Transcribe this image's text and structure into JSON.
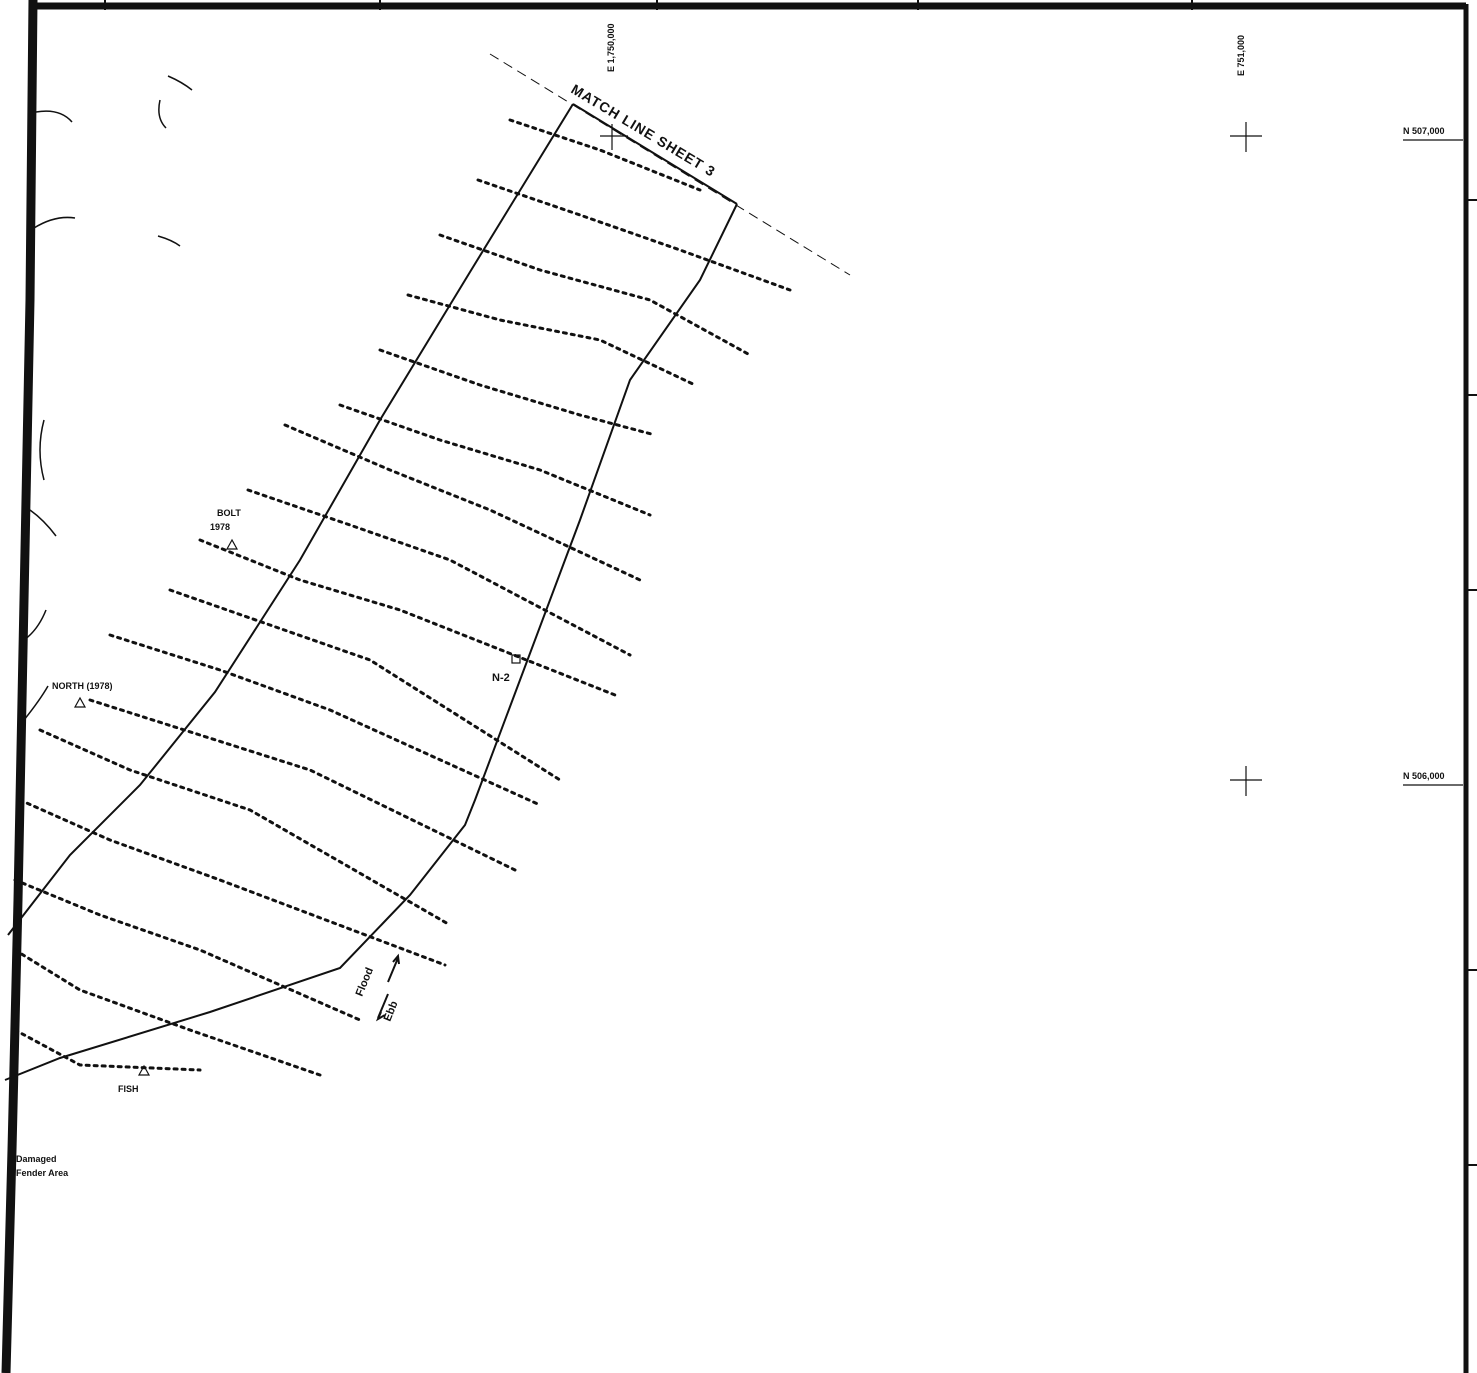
{
  "map": {
    "match_line_label": "MATCH LINE SHEET 3",
    "easting_labels": [
      "E 1,750,000",
      "E 751,000"
    ],
    "northing_labels": [
      "N 507,000",
      "N 506,000"
    ],
    "stations": [
      {
        "label": "BOLT",
        "year": "1978"
      },
      {
        "label": "NORTH (1978)"
      },
      {
        "label": "FISH"
      }
    ],
    "buoy_label": "N-2",
    "current": {
      "flood": "Flood",
      "ebb": "Ebb"
    },
    "note": [
      "Damaged",
      "Fender Area"
    ],
    "colors": {
      "ink": "#111111",
      "paper": "#ffffff"
    }
  }
}
